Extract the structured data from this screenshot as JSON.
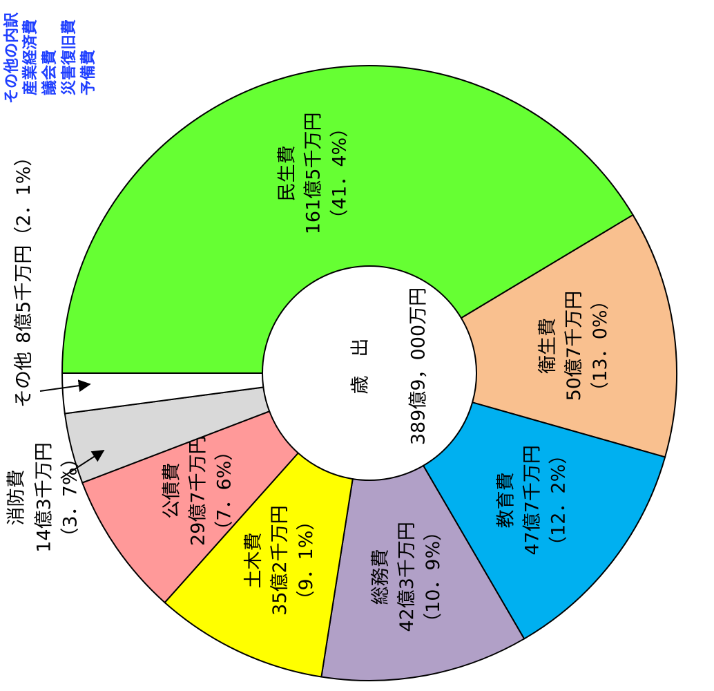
{
  "chart_data": {
    "type": "donut",
    "categories": [
      "民生費",
      "衛生費",
      "教育費",
      "総務費",
      "土木費",
      "公債費",
      "消防費",
      "その他"
    ],
    "values": [
      41.4,
      13.0,
      12.2,
      10.9,
      9.1,
      7.6,
      3.7,
      2.1
    ],
    "value_labels": [
      "（41．4%）",
      "（13．0%）",
      "（12．2%）",
      "（10．9%）",
      "（9．1%）",
      "（7．6%）",
      "（3．7%）",
      "（2．1%）"
    ],
    "amounts": [
      "161億5千万円",
      "50億7千万円",
      "47億7千万円",
      "42億3千万円",
      "35億2千万円",
      "29億7千万円",
      "14億3千万円",
      "8億5千万円"
    ],
    "colors": [
      "#66ff33",
      "#f9c08f",
      "#00b0f0",
      "#b1a0c7",
      "#ffff00",
      "#ff9999",
      "#d9d9d9",
      "#ffffff"
    ],
    "center": {
      "title": "歳　出",
      "total": "389億9，000万円"
    },
    "note": {
      "title": "その他の内訳",
      "items": [
        "産業経済費",
        "議会費",
        "災害復旧費",
        "予備費"
      ]
    }
  }
}
